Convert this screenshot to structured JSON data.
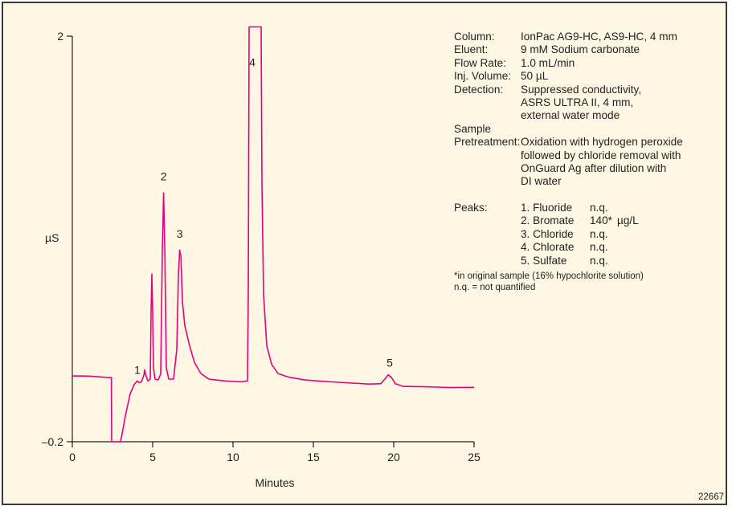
{
  "chart_data": {
    "type": "line",
    "xlabel": "Minutes",
    "ylabel": "µS",
    "xlim": [
      0,
      25
    ],
    "ylim": [
      -0.2,
      2
    ],
    "x_ticks": [
      "0",
      "5",
      "10",
      "15",
      "20",
      "25"
    ],
    "y_ticks": [
      "2",
      "–0.2"
    ],
    "line_color": "#e6007e",
    "series": [
      {
        "points": [
          [
            0,
            0.157
          ],
          [
            1.0,
            0.156
          ],
          [
            2.0,
            0.15
          ],
          [
            2.4,
            0.148
          ],
          [
            2.43,
            0.148
          ],
          [
            2.45,
            -0.2
          ],
          [
            3.0,
            -0.2
          ],
          [
            3.05,
            -0.18
          ],
          [
            3.3,
            -0.06
          ],
          [
            3.6,
            0.06
          ],
          [
            3.85,
            0.11
          ],
          [
            3.95,
            0.12
          ],
          [
            4.05,
            0.13
          ],
          [
            4.15,
            0.12
          ],
          [
            4.3,
            0.125
          ],
          [
            4.45,
            0.16
          ],
          [
            4.5,
            0.19
          ],
          [
            4.58,
            0.16
          ],
          [
            4.7,
            0.13
          ],
          [
            4.85,
            0.14
          ],
          [
            4.9,
            0.5
          ],
          [
            4.95,
            0.71
          ],
          [
            5.0,
            0.5
          ],
          [
            5.05,
            0.2
          ],
          [
            5.15,
            0.14
          ],
          [
            5.35,
            0.135
          ],
          [
            5.5,
            0.17
          ],
          [
            5.6,
            0.82
          ],
          [
            5.68,
            1.15
          ],
          [
            5.76,
            0.82
          ],
          [
            5.85,
            0.2
          ],
          [
            6.0,
            0.14
          ],
          [
            6.3,
            0.14
          ],
          [
            6.5,
            0.3
          ],
          [
            6.6,
            0.7
          ],
          [
            6.68,
            0.84
          ],
          [
            6.76,
            0.8
          ],
          [
            6.85,
            0.56
          ],
          [
            7.0,
            0.43
          ],
          [
            7.3,
            0.32
          ],
          [
            7.6,
            0.23
          ],
          [
            8.0,
            0.17
          ],
          [
            8.5,
            0.14
          ],
          [
            9.5,
            0.13
          ],
          [
            10.5,
            0.125
          ],
          [
            10.9,
            0.13
          ],
          [
            10.95,
            0.6
          ],
          [
            11.0,
            2.05
          ],
          [
            11.75,
            2.05
          ],
          [
            11.8,
            1.2
          ],
          [
            11.9,
            0.6
          ],
          [
            12.1,
            0.32
          ],
          [
            12.4,
            0.22
          ],
          [
            12.8,
            0.17
          ],
          [
            13.5,
            0.15
          ],
          [
            14.5,
            0.135
          ],
          [
            15.5,
            0.128
          ],
          [
            17.0,
            0.12
          ],
          [
            18.5,
            0.113
          ],
          [
            19.2,
            0.115
          ],
          [
            19.45,
            0.14
          ],
          [
            19.65,
            0.163
          ],
          [
            19.85,
            0.15
          ],
          [
            20.1,
            0.115
          ],
          [
            20.6,
            0.1
          ],
          [
            22.0,
            0.098
          ],
          [
            23.5,
            0.094
          ],
          [
            25.0,
            0.095
          ]
        ]
      }
    ],
    "peak_labels": [
      {
        "label": "1",
        "x": 4.05,
        "y": 0.15
      },
      {
        "label": "2",
        "x": 5.68,
        "y": 1.2
      },
      {
        "label": "3",
        "x": 6.68,
        "y": 0.89
      },
      {
        "label": "4",
        "x": 11.2,
        "y": 1.82
      },
      {
        "label": "5",
        "x": 19.75,
        "y": 0.19
      }
    ]
  },
  "conditions": [
    {
      "key": "Column:",
      "value": "IonPac AG9-HC, AS9-HC, 4 mm"
    },
    {
      "key": "Eluent:",
      "value": "9 mM Sodium carbonate"
    },
    {
      "key": "Flow Rate:",
      "value": "1.0 mL/min"
    },
    {
      "key": "Inj. Volume:",
      "value": "50 µL"
    },
    {
      "key": "Detection:",
      "value": "Suppressed conductivity,"
    },
    {
      "key": "",
      "value": "ASRS ULTRA II, 4 mm,"
    },
    {
      "key": "",
      "value": "external water mode"
    },
    {
      "key": "Sample",
      "value": ""
    },
    {
      "key": "Pretreatment:",
      "value": "Oxidation with hydrogen peroxide"
    },
    {
      "key": "",
      "value": "followed by chloride removal with"
    },
    {
      "key": "",
      "value": "OnGuard Ag after dilution with"
    },
    {
      "key": "",
      "value": "DI water"
    }
  ],
  "peaks_label": "Peaks:",
  "peaks": [
    {
      "name": "1.  Fluoride",
      "value": "n.q.",
      "unit": ""
    },
    {
      "name": "2.  Bromate",
      "value": "140*",
      "unit": "µg/L"
    },
    {
      "name": "3.  Chloride",
      "value": "n.q.",
      "unit": ""
    },
    {
      "name": "4.  Chlorate",
      "value": "n.q.",
      "unit": ""
    },
    {
      "name": "5.  Sulfate",
      "value": "n.q.",
      "unit": ""
    }
  ],
  "footnotes": [
    "*in original sample (16% hypochlorite solution)",
    "n.q. = not quantified"
  ],
  "figure_id": "22667"
}
